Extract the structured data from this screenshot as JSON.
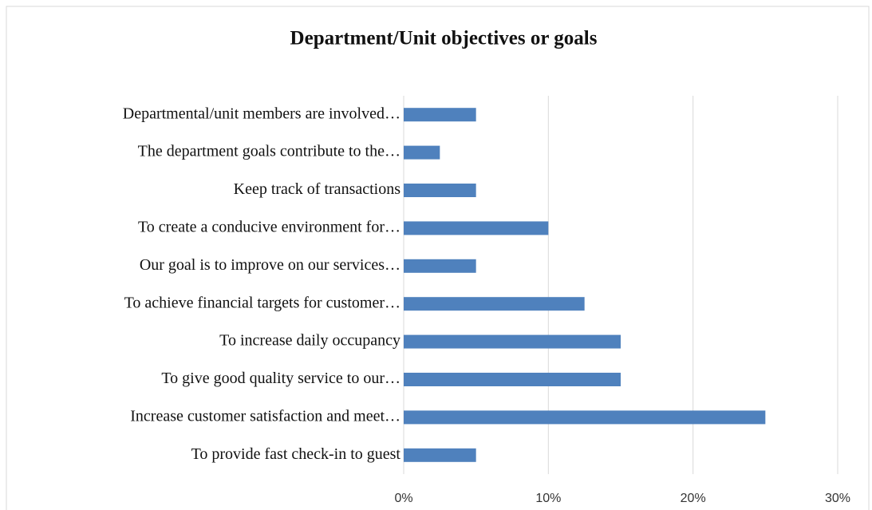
{
  "chart_data": {
    "type": "barh",
    "title": "Department/Unit objectives or goals",
    "categories": [
      "Departmental/unit members are involved…",
      "The department goals contribute to the…",
      "Keep track of transactions",
      "To create a conducive environment for…",
      "Our goal is to improve on our services…",
      "To achieve financial targets for customer…",
      "To increase daily occupancy",
      "To give good quality service to our…",
      "Increase customer satisfaction and meet…",
      "To provide fast check-in to guest"
    ],
    "values": [
      5,
      2.5,
      5,
      10,
      5,
      12.5,
      15,
      15,
      25,
      5
    ],
    "color": "#4f81bd",
    "xlim": [
      0,
      30
    ],
    "xticks": [
      {
        "value": 0,
        "label": "0%"
      },
      {
        "value": 10,
        "label": "10%"
      },
      {
        "value": 20,
        "label": "20%"
      },
      {
        "value": 30,
        "label": "30%"
      }
    ],
    "grid": true
  }
}
